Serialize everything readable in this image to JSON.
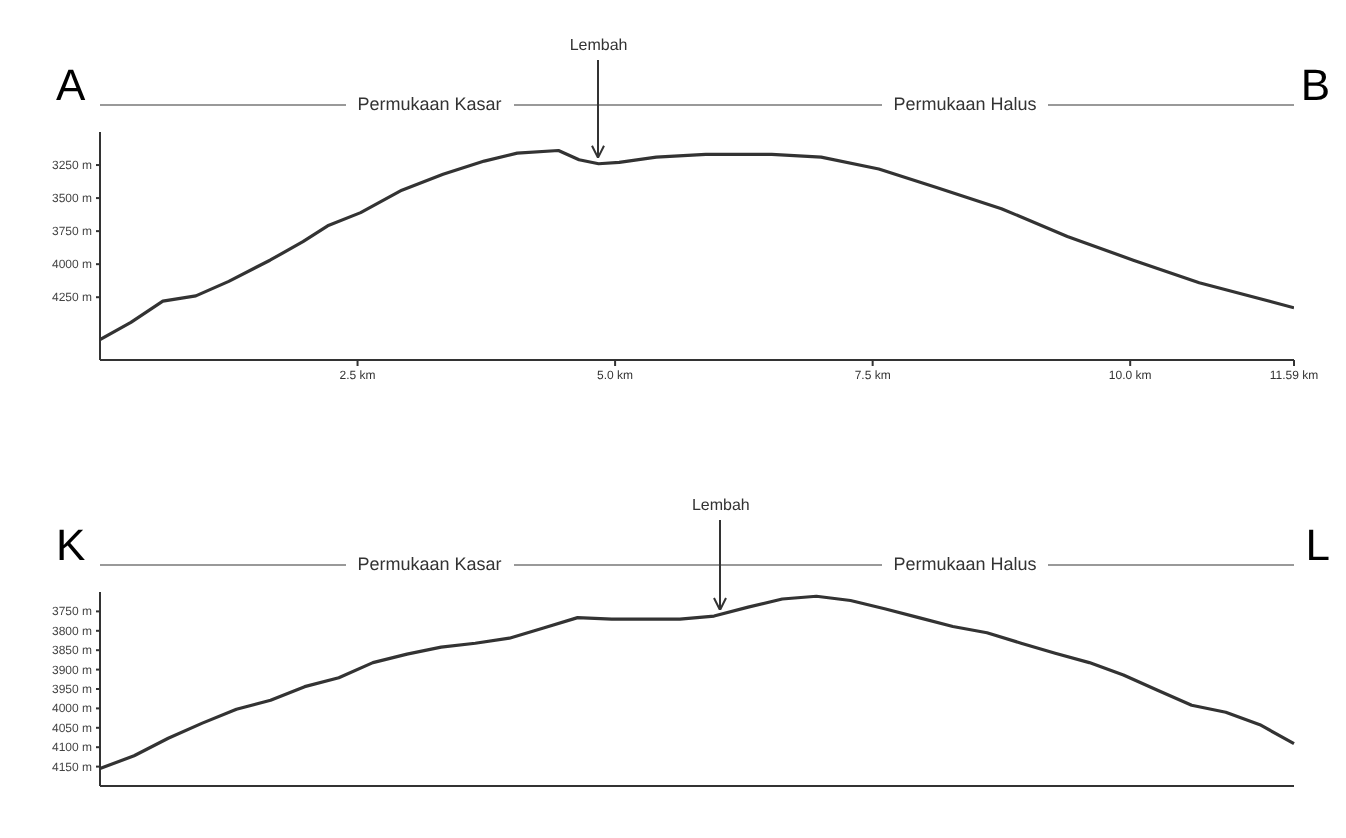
{
  "chart_data": [
    {
      "type": "line",
      "x": [
        0,
        0.3,
        0.61,
        0.93,
        1.25,
        1.65,
        1.97,
        2.21,
        2.53,
        2.93,
        3.33,
        3.73,
        4.05,
        4.45,
        4.65,
        4.84,
        5.04,
        5.4,
        5.88,
        6.52,
        7.0,
        7.56,
        8.12,
        8.75,
        9.39,
        10.03,
        10.67,
        11.59
      ],
      "series": [
        {
          "color": "#333333",
          "values": [
            4570,
            4440,
            4280,
            4240,
            4130,
            3970,
            3830,
            3710,
            3610,
            3440,
            3320,
            3220,
            3160,
            3140,
            3210,
            3240,
            3230,
            3190,
            3170,
            3170,
            3190,
            3280,
            3420,
            3580,
            3790,
            3970,
            4140,
            4330
          ]
        }
      ],
      "xlim": [
        0,
        11.59
      ],
      "xticks": [
        {
          "value": 2.5,
          "label": "2.5 km"
        },
        {
          "value": 5.0,
          "label": "5.0 km"
        },
        {
          "value": 7.5,
          "label": "7.5 km"
        },
        {
          "value": 10.0,
          "label": "10.0 km"
        },
        {
          "value": 11.59,
          "label": "11.59 km"
        }
      ],
      "ylim": [
        4725,
        3000
      ],
      "yticks": [
        {
          "value": 3250,
          "label": "3250 m"
        },
        {
          "value": 3500,
          "label": "3500 m"
        },
        {
          "value": 3750,
          "label": "3750 m"
        },
        {
          "value": 4000,
          "label": "4000 m"
        },
        {
          "value": 4250,
          "label": "4250 m"
        }
      ],
      "annotations": [
        "A",
        "Permukaan Kasar",
        "Permukaan Halus",
        "B",
        {
          "text": "Lembah",
          "x": 4.84,
          "y": 3240
        }
      ],
      "grid": false,
      "legend": false,
      "marker": "none",
      "line_style": "solid"
    },
    {
      "type": "line",
      "categories": [
        null,
        null,
        null,
        null,
        null,
        null,
        null,
        null,
        null,
        null,
        null,
        null,
        null,
        null,
        null,
        null,
        null,
        null,
        null,
        null,
        null,
        null,
        null,
        null,
        null,
        null,
        null,
        null,
        null,
        null,
        null,
        null,
        null,
        null,
        null,
        null
      ],
      "series": [
        {
          "color": "#333333",
          "values": [
            4155,
            4122,
            4077,
            4038,
            4002,
            3979,
            3944,
            3921,
            3882,
            3860,
            3842,
            3832,
            3819,
            3793,
            3766,
            3770,
            3770,
            3770,
            3762,
            3739,
            3718,
            3711,
            3722,
            3743,
            3766,
            3789,
            3805,
            3832,
            3858,
            3882,
            3914,
            3953,
            3992,
            4010,
            4042,
            4091
          ]
        }
      ],
      "ylim": [
        4200,
        3700
      ],
      "yticks": [
        {
          "value": 3750,
          "label": "3750 m"
        },
        {
          "value": 3800,
          "label": "3800 m"
        },
        {
          "value": 3850,
          "label": "3850 m"
        },
        {
          "value": 3900,
          "label": "3900 m"
        },
        {
          "value": 3950,
          "label": "3950 m"
        },
        {
          "value": 4000,
          "label": "4000 m"
        },
        {
          "value": 4050,
          "label": "4050 m"
        },
        {
          "value": 4100,
          "label": "4100 m"
        },
        {
          "value": 4150,
          "label": "4150 m"
        }
      ],
      "annotations": [
        "K",
        "Permukaan Kasar",
        "Permukaan Halus",
        "L",
        {
          "text": "Lembah",
          "y": 3762
        }
      ],
      "tick_labels": "y",
      "grid": false,
      "legend": false,
      "marker": "none",
      "line_style": "solid"
    }
  ]
}
